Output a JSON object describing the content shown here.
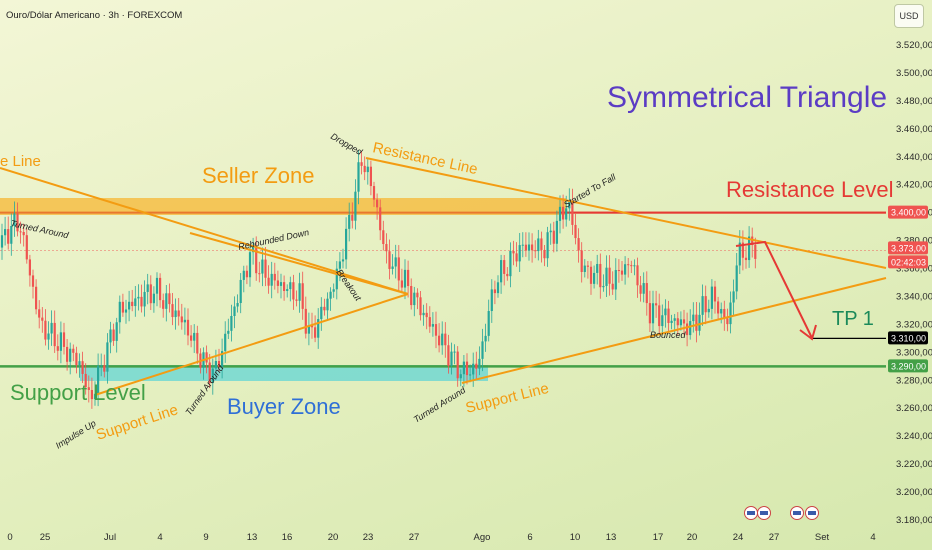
{
  "header": {
    "title": "Ouro/Dólar Americano · 3h · FOREXCOM",
    "currency": "USD"
  },
  "chart_data": {
    "type": "candlestick",
    "title": "Symmetrical Triangle",
    "ylim": [
      3180,
      3525
    ],
    "y_ticks": [
      "3.520,00",
      "3.500,00",
      "3.480,00",
      "3.460,00",
      "3.440,00",
      "3.420,00",
      "3.400,00",
      "3.380,00",
      "3.360,00",
      "3.340,00",
      "3.320,00",
      "3.300,00",
      "3.280,00",
      "3.260,00",
      "3.240,00",
      "3.220,00",
      "3.200,00",
      "3.180,00"
    ],
    "x_ticks": [
      "0",
      "25",
      "Jul",
      "4",
      "9",
      "13",
      "16",
      "20",
      "23",
      "27",
      "Ago",
      "6",
      "10",
      "13",
      "17",
      "20",
      "24",
      "27",
      "Set",
      "4"
    ],
    "price_labels": [
      {
        "label": "3.400,00",
        "color": "#ef5350"
      },
      {
        "label": "3.373,00",
        "color": "#ef5350"
      },
      {
        "label": "02:42:03",
        "color": "#ef5350"
      },
      {
        "label": "3.310,00",
        "color": "#000000"
      },
      {
        "label": "3.290,00",
        "color": "#43a047"
      }
    ],
    "zones": {
      "seller": "Seller Zone",
      "buyer": "Buyer Zone"
    },
    "text_labels": {
      "symmetrical_triangle": "Symmetrical Triangle",
      "resistance_level": "Resistance Level",
      "support_level": "Support Level",
      "seller_zone": "Seller Zone",
      "buyer_zone": "Buyer Zone",
      "tp1": "TP 1",
      "resistance_line": "Resistance Line",
      "left_line_fragment": "e Line",
      "support_line_1": "Support Line",
      "support_line_2": "Support Line"
    },
    "annotations": {
      "turned_around_1": "Turned Around",
      "impulse_up": "Impulse Up",
      "turned_around_2": "Turned Around",
      "rebounded_down": "Rebounded Down",
      "breakout": "Breakout",
      "dropped": "Dropped",
      "turned_around_3": "Turned Around",
      "started_to_fall": "Started To Fall",
      "bounced": "Bounced"
    },
    "levels": {
      "resistance": 3400,
      "support": 3290,
      "tp1": 3310,
      "current": 3373
    },
    "colors": {
      "up": "#26a69a",
      "down": "#ef5350",
      "orange": "#f39c12",
      "seller_zone": "#f7b733",
      "buyer_zone": "#4fd1d9",
      "support": "#43a047",
      "resistance": "#e53935",
      "title": "#5b3cc4",
      "buyer_text": "#2f6fd6",
      "tp1": "#1b8a5a"
    }
  }
}
